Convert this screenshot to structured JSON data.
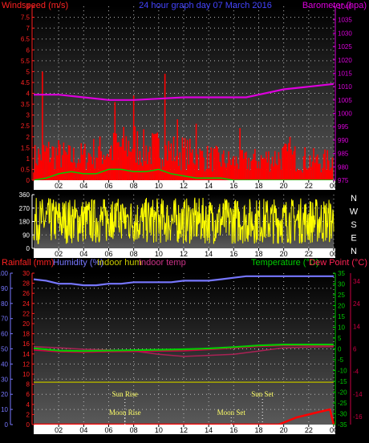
{
  "header": {
    "title": "24 hour graph day  07 March 2016",
    "left_label": "Windspeed (m/s)",
    "right_label": "Barometer (hpa)"
  },
  "compass": [
    "N",
    "W",
    "S",
    "E",
    "N"
  ],
  "bottom_legend": {
    "rainfall": "Rainfall (mm)",
    "humidity": "Humidity (%)",
    "indoor_hum": "Indoor hum",
    "indoor_temp": "Indoor temp",
    "temperature": "Temperature (°C)",
    "dew_point": "Dew Point (°C)"
  },
  "events": {
    "sun_rise": "Sun Rise",
    "moon_rise": "Moon Rise",
    "sun_set": "Sun Set",
    "moon_set": "Moon Set"
  },
  "colors": {
    "wind": "#ff0000",
    "gust": "#00cc00",
    "barometer": "#dd00dd",
    "direction": "#ffff00",
    "humidity": "#7777ff",
    "indoor_hum": "#aaaa00",
    "indoor_temp": "#aa2255",
    "temperature": "#00cc00",
    "dew_point": "#cc0044",
    "rain": "#ff0000"
  },
  "chart_data": [
    {
      "type": "line",
      "title": "24 hour graph day  07 March 2016",
      "ylabel": "Windspeed (m/s)",
      "y2label": "Barometer (hpa)",
      "x_ticks": [
        "02",
        "04",
        "06",
        "08",
        "10",
        "12",
        "14",
        "16",
        "18",
        "20",
        "22",
        "00"
      ],
      "ylim": [
        0,
        8
      ],
      "y_ticks": [
        "0",
        "0.5",
        "1",
        "1.5",
        "2",
        "2.5",
        "3",
        "3.5",
        "4",
        "4.5",
        "5",
        "5.5",
        "6",
        "6.5",
        "7",
        "7.5",
        "8"
      ],
      "y2lim": [
        975,
        1040
      ],
      "y2_ticks": [
        "975",
        "980",
        "985",
        "990",
        "995",
        "1000",
        "1005",
        "1010",
        "1015",
        "1020",
        "1025",
        "1030",
        "1035",
        "1040"
      ],
      "grid": true,
      "series": [
        {
          "name": "Windspeed",
          "axis": "left",
          "style": "bars",
          "x": [
            0,
            1,
            2,
            3,
            4,
            5,
            6,
            7,
            8,
            9,
            10,
            11,
            12,
            13,
            14,
            15,
            16,
            17,
            18,
            19,
            20,
            21,
            22,
            23,
            24
          ],
          "values": [
            1.2,
            1.5,
            1.4,
            1.2,
            1.3,
            1.5,
            1.6,
            1.8,
            2.0,
            1.6,
            1.7,
            1.6,
            1.5,
            1.3,
            1.2,
            1.1,
            1.0,
            1.0,
            1.1,
            1.2,
            1.3,
            1.2,
            1.1,
            1.0,
            1.1
          ],
          "spikes": [
            [
              0.7,
              5.0
            ],
            [
              6.5,
              3.6
            ],
            [
              8.0,
              3.9
            ],
            [
              10.5,
              4.9
            ],
            [
              11.5,
              2.8
            ],
            [
              13.0,
              2.6
            ],
            [
              16.5,
              2.4
            ],
            [
              20.5,
              2.0
            ]
          ]
        },
        {
          "name": "Gust",
          "axis": "left",
          "style": "line",
          "x": [
            0,
            1,
            2,
            3,
            4,
            5,
            6,
            7,
            8,
            9,
            10,
            11,
            12,
            13,
            14,
            15,
            16,
            17,
            18,
            19,
            20,
            21,
            22,
            23,
            24
          ],
          "values": [
            0.0,
            0.1,
            0.3,
            0.4,
            0.3,
            0.3,
            0.5,
            0.5,
            0.4,
            0.4,
            0.5,
            0.3,
            0.2,
            0.1,
            0.1,
            0.1,
            0.0,
            0.0,
            0.0,
            0.0,
            0.0,
            0.0,
            0.0,
            0.0,
            0.0
          ]
        },
        {
          "name": "Barometer",
          "axis": "right",
          "style": "line",
          "x": [
            0,
            2,
            4,
            6,
            8,
            10,
            12,
            14,
            16,
            17,
            18,
            20,
            22,
            24
          ],
          "values": [
            1007,
            1007,
            1006,
            1005,
            1005,
            1005.5,
            1006,
            1006,
            1006,
            1006,
            1007,
            1009,
            1010,
            1011
          ]
        }
      ]
    },
    {
      "type": "line",
      "x_ticks": [
        "02",
        "04",
        "06",
        "08",
        "10",
        "12",
        "14",
        "16",
        "18",
        "20",
        "22",
        "00"
      ],
      "ylim": [
        0,
        360
      ],
      "y_ticks": [
        "0",
        "90",
        "180",
        "270",
        "360"
      ],
      "grid": true,
      "series": [
        {
          "name": "Wind Direction",
          "style": "noisy",
          "range_start": [
            30,
            340
          ],
          "range_end": [
            30,
            340
          ]
        }
      ]
    },
    {
      "type": "line",
      "x_ticks": [
        "02",
        "04",
        "06",
        "08",
        "10",
        "12",
        "14",
        "16",
        "18",
        "20",
        "22",
        "00"
      ],
      "ylim": [
        0,
        100
      ],
      "y_ticks": [
        "0",
        "10",
        "20",
        "30",
        "40",
        "50",
        "60",
        "70",
        "80",
        "90",
        "100"
      ],
      "y_mid_ticks": [
        "0",
        "2",
        "4",
        "6",
        "8",
        "10",
        "12",
        "14",
        "16",
        "18",
        "20",
        "22",
        "24",
        "26",
        "28",
        "30"
      ],
      "y2lim": [
        -35,
        35
      ],
      "y2_ticks": [
        "-35",
        "-30",
        "-25",
        "-20",
        "-15",
        "-10",
        "-5",
        "0",
        "5",
        "10",
        "15",
        "20",
        "25",
        "30",
        "35"
      ],
      "y3_ticks": [
        "-16",
        "-14",
        "-4",
        "6",
        "14",
        "24",
        "34"
      ],
      "grid": true,
      "series": [
        {
          "name": "Humidity",
          "axis": "left",
          "x": [
            0,
            1,
            2,
            3,
            4,
            5,
            6,
            7,
            8,
            9,
            10,
            11,
            12,
            13,
            14,
            15,
            16,
            17,
            18,
            19,
            20,
            21,
            22,
            23,
            24
          ],
          "values": [
            96,
            95,
            93,
            93,
            92,
            92,
            93,
            93,
            94,
            94,
            94,
            94,
            95,
            95,
            95,
            96,
            97,
            98,
            98,
            98,
            98,
            98,
            98,
            98,
            98
          ]
        },
        {
          "name": "Indoor hum",
          "axis": "left",
          "x": [
            0,
            24
          ],
          "values": [
            28,
            28
          ]
        },
        {
          "name": "Indoor temp",
          "axis": "right",
          "x": [
            0,
            2,
            4,
            6,
            8,
            10,
            12,
            14,
            16,
            18,
            20,
            22,
            24
          ],
          "values": [
            1.0,
            0.5,
            -0.2,
            -0.5,
            -1.0,
            -2.5,
            -3.5,
            -3.0,
            -2.5,
            -1.0,
            0.5,
            0.8,
            1.0
          ]
        },
        {
          "name": "Temperature",
          "axis": "right",
          "x": [
            0,
            2,
            4,
            6,
            8,
            10,
            12,
            14,
            16,
            18,
            20,
            22,
            24
          ],
          "values": [
            0.3,
            -0.8,
            -1.0,
            -0.8,
            -0.6,
            -0.4,
            -0.2,
            0.2,
            0.8,
            1.6,
            2.0,
            2.0,
            2.0
          ]
        },
        {
          "name": "Dew Point",
          "axis": "right",
          "x": [
            0,
            2,
            4,
            6,
            8,
            10,
            12,
            14,
            16,
            18,
            20,
            22,
            24
          ],
          "values": [
            -0.5,
            -1.3,
            -1.5,
            -1.3,
            -1.2,
            -1.0,
            -0.9,
            -0.3,
            0.4,
            1.2,
            1.6,
            1.6,
            1.6
          ]
        },
        {
          "name": "Rainfall",
          "axis": "left-inner",
          "x": [
            0,
            19.6,
            20,
            21,
            22,
            23,
            23.7,
            24
          ],
          "values": [
            0,
            0,
            0.4,
            1.4,
            2.0,
            2.6,
            3.0,
            0
          ]
        }
      ],
      "events": [
        {
          "label": "Sun Rise",
          "x": 7.3
        },
        {
          "label": "Moon Rise",
          "x": 7.3
        },
        {
          "label": "Sun Set",
          "x": 18.3
        },
        {
          "label": "Moon Set",
          "x": 15.8
        }
      ]
    }
  ]
}
